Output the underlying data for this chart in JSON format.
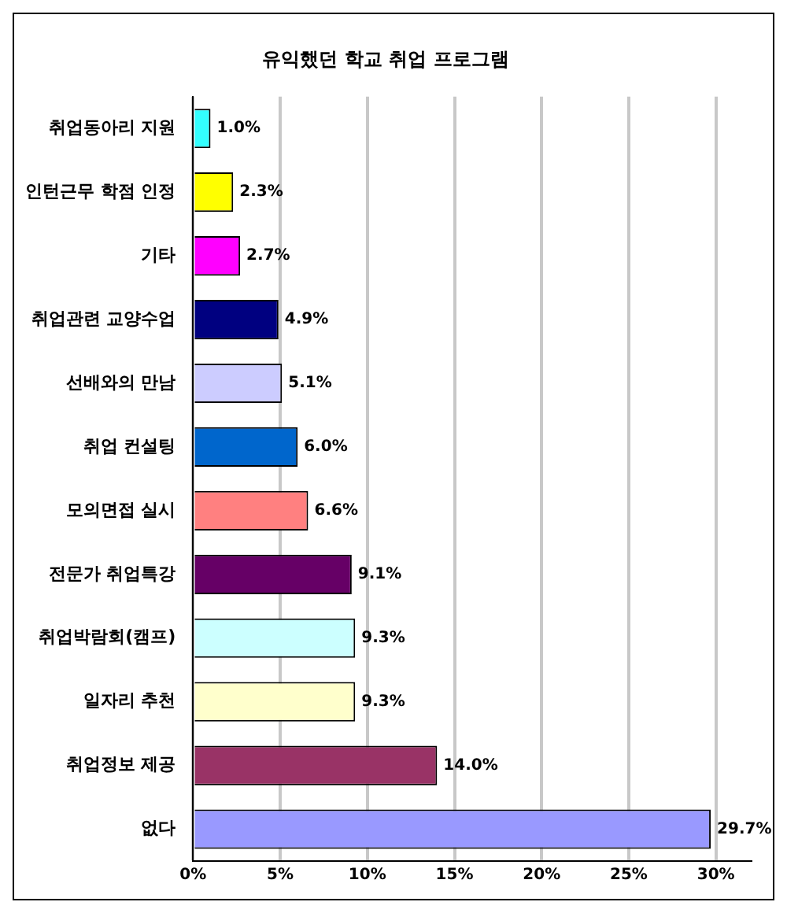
{
  "chart_data": {
    "type": "bar",
    "orientation": "horizontal",
    "title": "유익했던 학교 취업 프로그램",
    "categories": [
      "취업동아리 지원",
      "인턴근무 학점 인정",
      "기타",
      "취업관련 교양수업",
      "선배와의 만남",
      "취업 컨설팅",
      "모의면접 실시",
      "전문가 취업특강",
      "취업박람회(캠프)",
      "일자리 추천",
      "취업정보 제공",
      "없다"
    ],
    "values": [
      1.0,
      2.3,
      2.7,
      4.9,
      5.1,
      6.0,
      6.6,
      9.1,
      9.3,
      9.3,
      14.0,
      29.7
    ],
    "colors": [
      "#33ffff",
      "#ffff00",
      "#ff00ff",
      "#000080",
      "#ccccff",
      "#0066cc",
      "#ff8080",
      "#660066",
      "#ccffff",
      "#ffffcc",
      "#993366",
      "#9999ff"
    ],
    "value_labels": [
      "1.0%",
      "2.3%",
      "2.7%",
      "4.9%",
      "5.1%",
      "6.0%",
      "6.6%",
      "9.1%",
      "9.3%",
      "9.3%",
      "14.0%",
      "29.7%"
    ],
    "xlim": [
      0,
      32
    ],
    "xticks": [
      {
        "value": 0,
        "label": "0%"
      },
      {
        "value": 5,
        "label": "5%"
      },
      {
        "value": 10,
        "label": "10%"
      },
      {
        "value": 15,
        "label": "15%"
      },
      {
        "value": 20,
        "label": "20%"
      },
      {
        "value": 25,
        "label": "25%"
      },
      {
        "value": 30,
        "label": "30%"
      }
    ],
    "grid": "x",
    "legend": false
  }
}
